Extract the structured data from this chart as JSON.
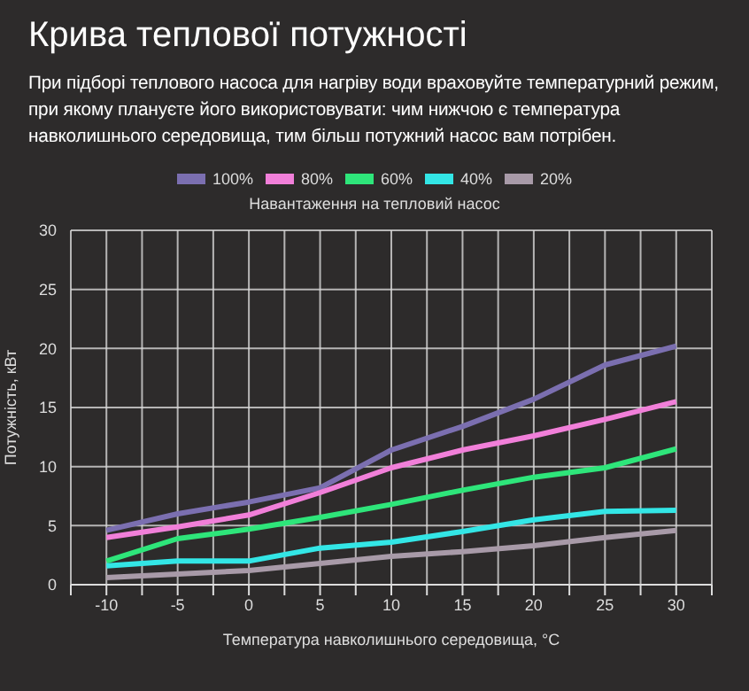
{
  "chart_data": {
    "type": "line",
    "title": "Крива теплової потужності",
    "subtitle": "При підборі теплового насоса для нагріву води враховуйте температурний режим, при якому плануєте його використовувати: чим нижчою є температура навколишнього середовища, тим більш потужний насос вам потрібен.",
    "legend_title": "Навантаження на тепловий насос",
    "xlabel": "Температура навколишнього середовища, °C",
    "ylabel": "Потужність, кВт",
    "x": [
      -10,
      -5,
      0,
      5,
      10,
      15,
      20,
      25,
      30
    ],
    "series": [
      {
        "name": "100%",
        "color": "#7b6fb0",
        "values": [
          4.6,
          6.0,
          7.0,
          8.2,
          11.4,
          13.4,
          15.7,
          18.6,
          20.2
        ]
      },
      {
        "name": "80%",
        "color": "#f17fd9",
        "values": [
          4.0,
          4.9,
          5.9,
          7.8,
          9.9,
          11.4,
          12.6,
          14.0,
          15.5
        ]
      },
      {
        "name": "60%",
        "color": "#2ee57a",
        "values": [
          2.0,
          3.9,
          4.7,
          5.7,
          6.8,
          8.0,
          9.1,
          9.9,
          11.5
        ]
      },
      {
        "name": "40%",
        "color": "#33e6e6",
        "values": [
          1.6,
          2.0,
          2.0,
          3.1,
          3.6,
          4.5,
          5.5,
          6.2,
          6.3
        ]
      },
      {
        "name": "20%",
        "color": "#a89aa8",
        "values": [
          0.6,
          0.9,
          1.2,
          1.8,
          2.4,
          2.8,
          3.3,
          4.0,
          4.6
        ]
      }
    ],
    "xlim": [
      -12.5,
      32.5
    ],
    "xticks": [
      {
        "value": -12.5,
        "label": null
      },
      -10,
      {
        "value": -7.5,
        "label": null
      },
      -5,
      {
        "value": -2.5,
        "label": null
      },
      0,
      {
        "value": 2.5,
        "label": null
      },
      5,
      {
        "value": 7.5,
        "label": null
      },
      10,
      {
        "value": 12.5,
        "label": null
      },
      15,
      {
        "value": 17.5,
        "label": null
      },
      20,
      {
        "value": 22.5,
        "label": null
      },
      25,
      {
        "value": 27.5,
        "label": null
      },
      30,
      {
        "value": 32.5,
        "label": null
      }
    ],
    "ylim": [
      0,
      30
    ],
    "yticks": [
      0,
      5,
      10,
      15,
      20,
      25,
      30
    ],
    "grid": true,
    "legend": "top",
    "marker": "none",
    "line_style": "solid"
  }
}
